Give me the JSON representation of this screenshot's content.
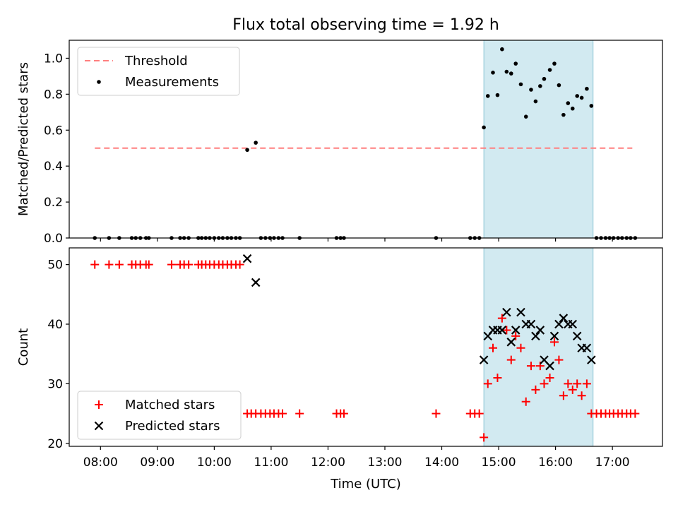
{
  "figure": {
    "title": "Flux total observing time = 1.92 h",
    "xlabel": "Time (UTC)",
    "xticks": [
      "08:00",
      "09:00",
      "10:00",
      "11:00",
      "12:00",
      "13:00",
      "14:00",
      "15:00",
      "16:00",
      "17:00"
    ],
    "shaded_region": {
      "x_start": 14.74,
      "x_end": 16.66,
      "color": "#add8e6"
    }
  },
  "chart_data": [
    {
      "type": "scatter",
      "ylabel": "Matched/Predicted stars",
      "xlim": [
        7.45,
        17.88
      ],
      "ylim": [
        0,
        1.1
      ],
      "yticks": [
        "0.0",
        "0.2",
        "0.4",
        "0.6",
        "0.8",
        "1.0"
      ],
      "grid": false,
      "legend": {
        "placement": "upper-left",
        "entries": [
          "Threshold",
          "Measurements"
        ]
      },
      "threshold": {
        "name": "Threshold",
        "value": 0.5,
        "x_start": 7.9,
        "x_end": 17.35,
        "color": "#ff7f7f",
        "style": "dashed"
      },
      "series": [
        {
          "name": "Measurements",
          "marker": "dot",
          "color": "#000000",
          "x": [
            7.9,
            8.15,
            8.33,
            8.55,
            8.62,
            8.7,
            8.8,
            8.85,
            9.25,
            9.4,
            9.47,
            9.55,
            9.72,
            9.78,
            9.85,
            9.92,
            10.0,
            10.08,
            10.15,
            10.23,
            10.3,
            10.38,
            10.45,
            10.58,
            10.73,
            10.82,
            10.9,
            10.98,
            11.05,
            11.13,
            11.2,
            11.5,
            12.15,
            12.22,
            12.28,
            13.9,
            14.5,
            14.58,
            14.66,
            14.74,
            14.81,
            14.9,
            14.98,
            15.06,
            15.14,
            15.22,
            15.3,
            15.39,
            15.48,
            15.57,
            15.65,
            15.73,
            15.8,
            15.9,
            15.98,
            16.06,
            16.14,
            16.22,
            16.3,
            16.38,
            16.46,
            16.55,
            16.63,
            16.72,
            16.8,
            16.88,
            16.95,
            17.02,
            17.1,
            17.17,
            17.25,
            17.32,
            17.4
          ],
          "y": [
            0,
            0,
            0,
            0,
            0,
            0,
            0,
            0,
            0,
            0,
            0,
            0,
            0,
            0,
            0,
            0,
            0,
            0,
            0,
            0,
            0,
            0,
            0,
            0.49,
            0.53,
            0,
            0,
            0,
            0,
            0,
            0,
            0,
            0,
            0,
            0,
            0,
            0,
            0,
            0,
            0.615,
            0.79,
            0.92,
            0.795,
            1.05,
            0.925,
            0.915,
            0.97,
            0.855,
            0.675,
            0.825,
            0.76,
            0.845,
            0.885,
            0.935,
            0.97,
            0.85,
            0.685,
            0.75,
            0.72,
            0.79,
            0.78,
            0.83,
            0.735,
            0,
            0,
            0,
            0,
            0,
            0,
            0,
            0,
            0,
            0
          ]
        }
      ]
    },
    {
      "type": "scatter",
      "ylabel": "Count",
      "xlim": [
        7.45,
        17.88
      ],
      "ylim": [
        19.5,
        52.8
      ],
      "yticks": [
        "20",
        "30",
        "40",
        "50"
      ],
      "grid": false,
      "legend": {
        "placement": "lower-left",
        "entries": [
          "Matched stars",
          "Predicted stars"
        ]
      },
      "series": [
        {
          "name": "Matched stars",
          "marker": "plus",
          "color": "#ff0000",
          "x": [
            7.9,
            8.15,
            8.33,
            8.55,
            8.62,
            8.7,
            8.8,
            8.85,
            9.25,
            9.4,
            9.47,
            9.55,
            9.72,
            9.78,
            9.85,
            9.92,
            10.0,
            10.08,
            10.15,
            10.23,
            10.3,
            10.38,
            10.45,
            10.58,
            10.65,
            10.73,
            10.82,
            10.9,
            10.98,
            11.05,
            11.13,
            11.2,
            11.5,
            12.15,
            12.22,
            12.28,
            13.9,
            14.5,
            14.58,
            14.66,
            14.74,
            14.81,
            14.9,
            14.98,
            15.06,
            15.14,
            15.22,
            15.3,
            15.39,
            15.48,
            15.57,
            15.65,
            15.73,
            15.8,
            15.9,
            15.98,
            16.06,
            16.14,
            16.22,
            16.3,
            16.38,
            16.46,
            16.55,
            16.63,
            16.72,
            16.8,
            16.88,
            16.95,
            17.02,
            17.1,
            17.17,
            17.25,
            17.32,
            17.4
          ],
          "y": [
            50,
            50,
            50,
            50,
            50,
            50,
            50,
            50,
            50,
            50,
            50,
            50,
            50,
            50,
            50,
            50,
            50,
            50,
            50,
            50,
            50,
            50,
            50,
            25,
            25,
            25,
            25,
            25,
            25,
            25,
            25,
            25,
            25,
            25,
            25,
            25,
            25,
            25,
            25,
            25,
            21,
            30,
            36,
            31,
            41,
            39,
            34,
            38,
            36,
            27,
            33,
            29,
            33,
            30,
            31,
            37,
            34,
            28,
            30,
            29,
            30,
            28,
            30,
            25,
            25,
            25,
            25,
            25,
            25,
            25,
            25,
            25,
            25,
            25
          ]
        },
        {
          "name": "Predicted stars",
          "marker": "x",
          "color": "#000000",
          "x": [
            10.58,
            10.73,
            14.74,
            14.81,
            14.9,
            14.98,
            15.06,
            15.14,
            15.22,
            15.3,
            15.39,
            15.48,
            15.57,
            15.65,
            15.73,
            15.8,
            15.9,
            15.98,
            16.06,
            16.14,
            16.22,
            16.3,
            16.38,
            16.46,
            16.55,
            16.63
          ],
          "y": [
            51,
            47,
            34,
            38,
            39,
            39,
            39,
            42,
            37,
            39,
            42,
            40,
            40,
            38,
            39,
            34,
            33,
            38,
            40,
            41,
            40,
            40,
            38,
            36,
            36,
            34
          ]
        }
      ]
    }
  ]
}
